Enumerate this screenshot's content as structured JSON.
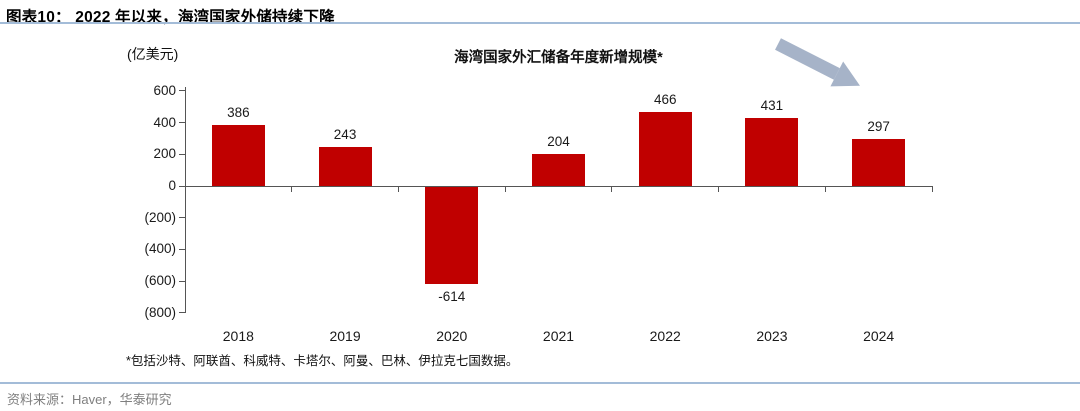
{
  "header": {
    "title": "图表10：  2022 年以来，海湾国家外储持续下降"
  },
  "chart_data": {
    "type": "bar",
    "title": "海湾国家外汇储备年度新增规模*",
    "unit_label": "(亿美元)",
    "categories": [
      "2018",
      "2019",
      "2020",
      "2021",
      "2022",
      "2023",
      "2024"
    ],
    "values": [
      386,
      243,
      -614,
      204,
      466,
      431,
      297
    ],
    "ylim": [
      -800,
      600
    ],
    "ytick_interval": 200,
    "ytick_labels": [
      "600",
      "400",
      "200",
      "0",
      "(200)",
      "(400)",
      "(600)",
      "(800)"
    ],
    "xlabel": "",
    "ylabel": "(亿美元)",
    "grid": false,
    "legend": "none",
    "bar_color": "#c00000",
    "axis_color": "#555555",
    "annotation": {
      "icon": "decline-arrow-icon",
      "color": "#a6b3c8"
    }
  },
  "footnote": "*包括沙特、阿联酋、科威特、卡塔尔、阿曼、巴林、伊拉克七国数据。",
  "source": "资料来源：Haver，华泰研究"
}
